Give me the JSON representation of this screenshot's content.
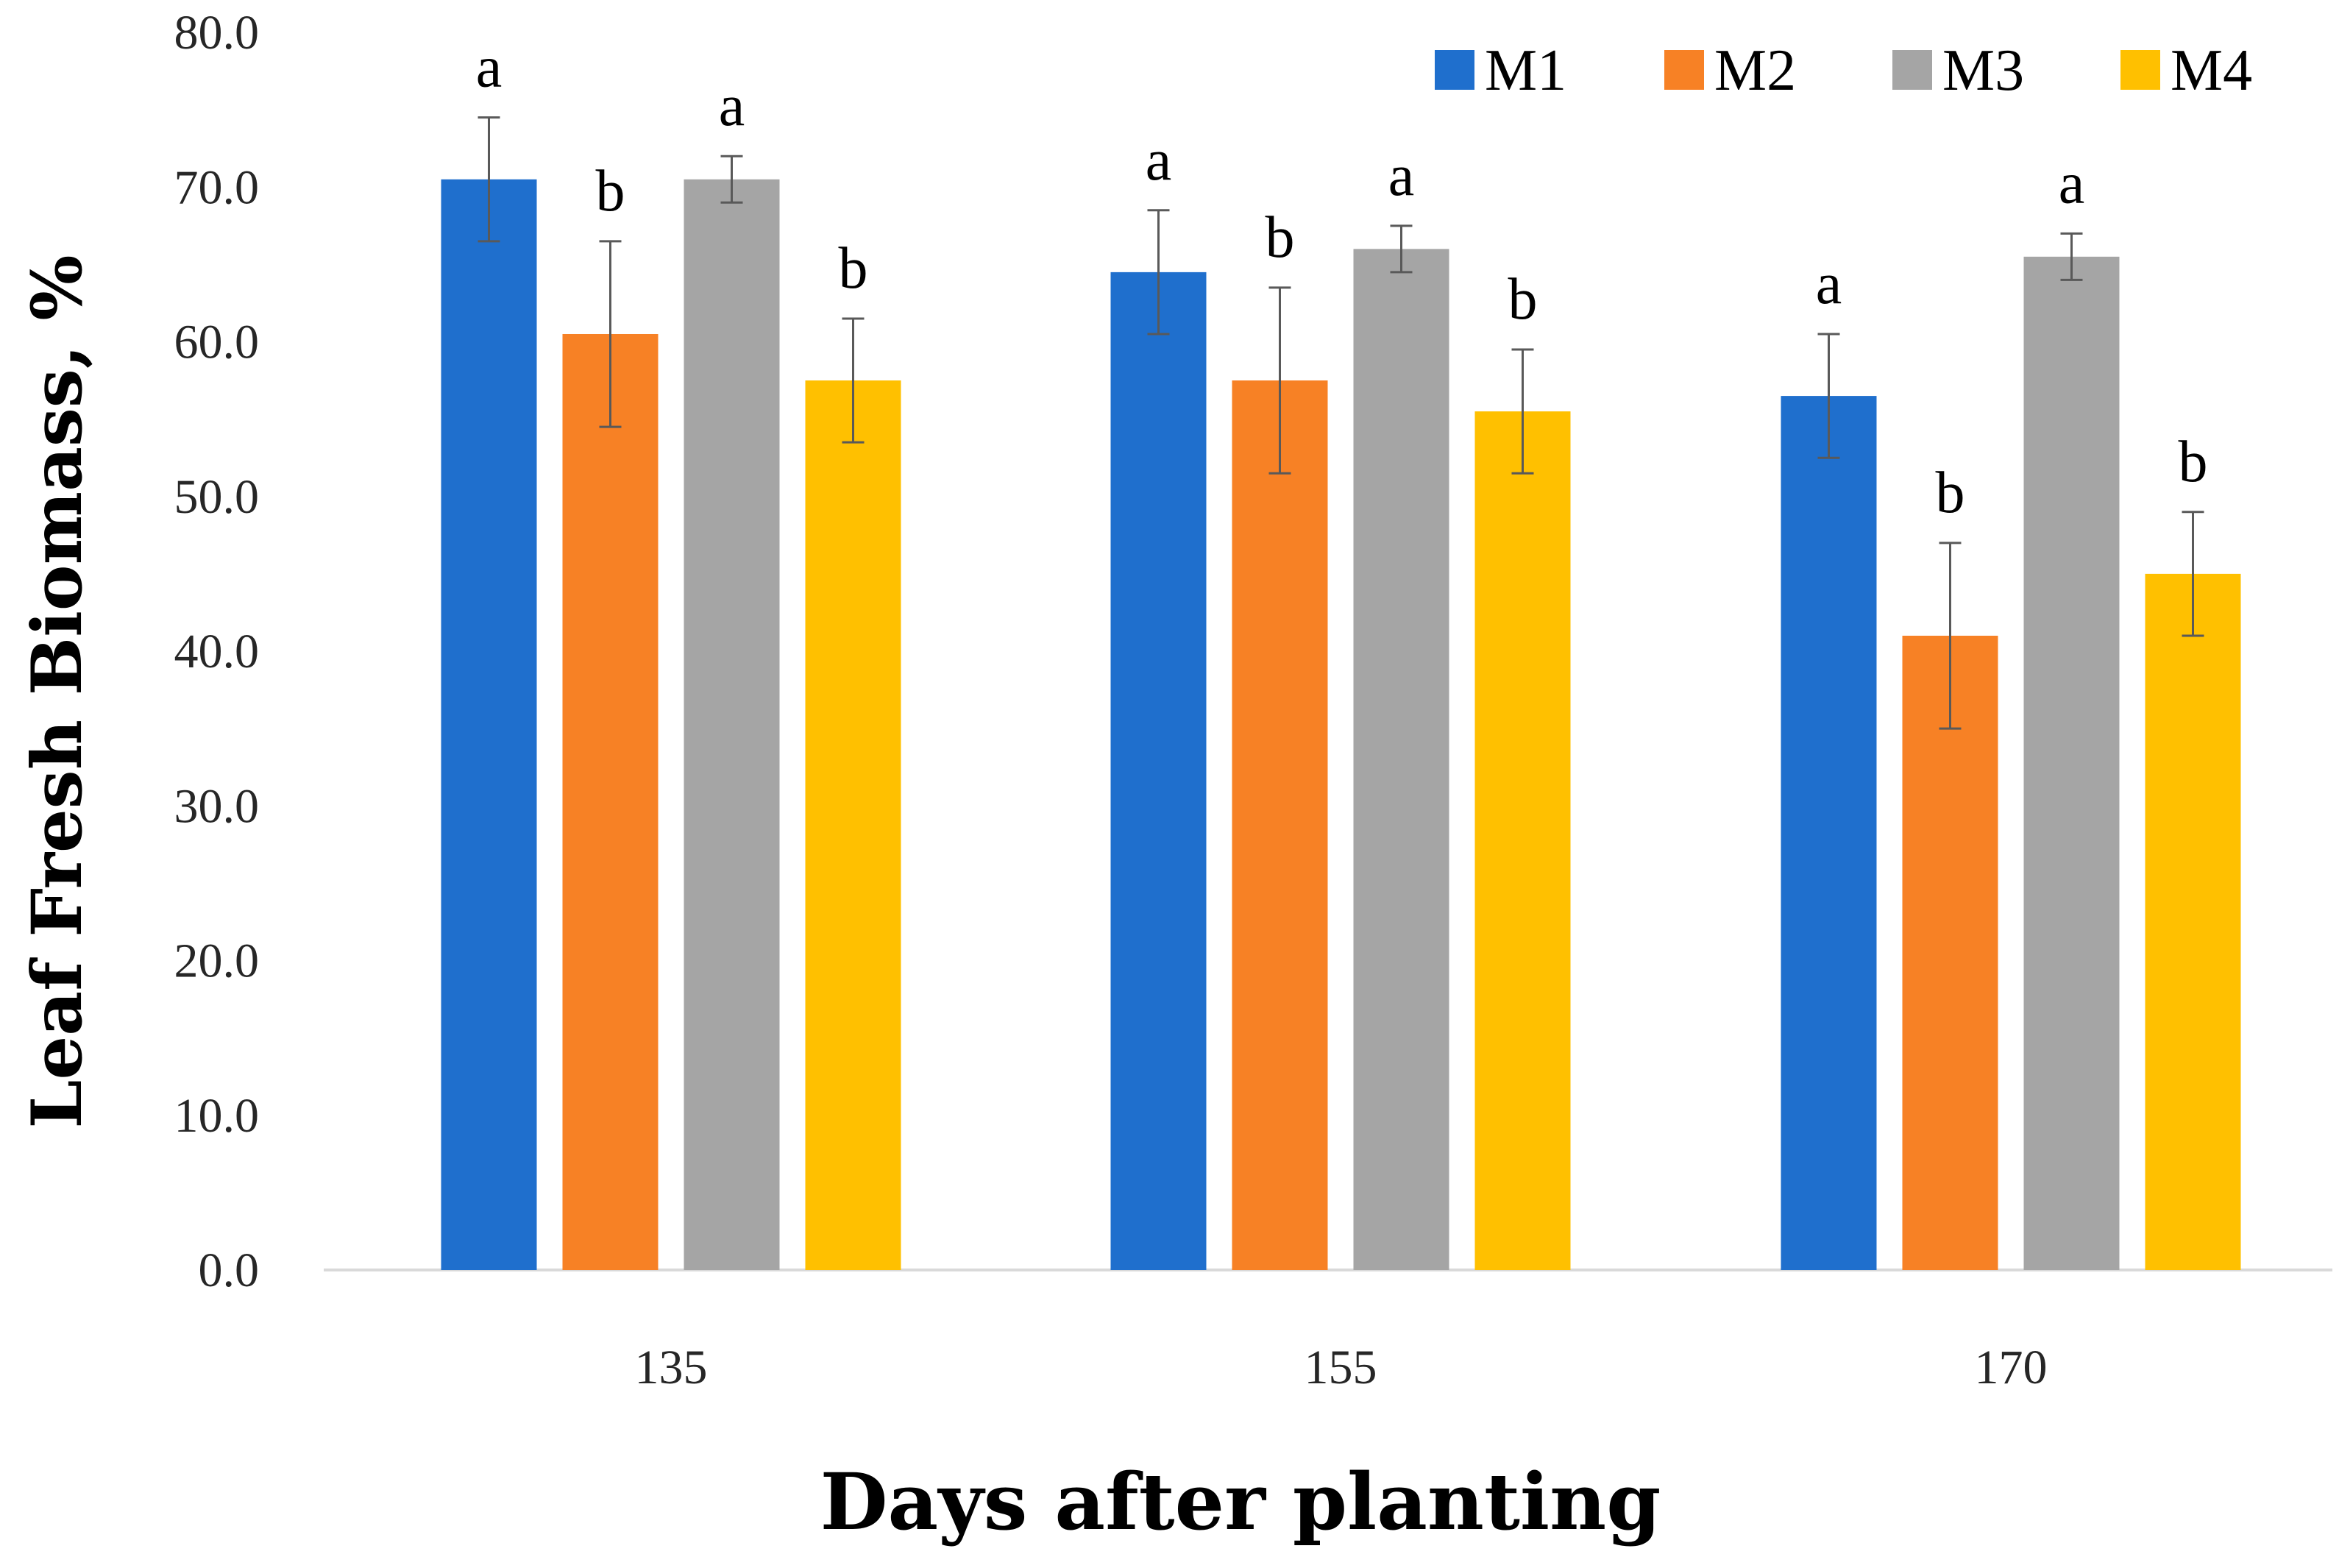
{
  "chart_data": {
    "type": "bar",
    "categories": [
      "135",
      "155",
      "170"
    ],
    "series": [
      {
        "name": "M1",
        "color": "#1F6FCD",
        "values": [
          70.5,
          64.5,
          56.5
        ],
        "errors": [
          4.0,
          4.0,
          4.0
        ],
        "letters": [
          "a",
          "a",
          "a"
        ]
      },
      {
        "name": "M2",
        "color": "#F78125",
        "values": [
          60.5,
          57.5,
          41.0
        ],
        "errors": [
          6.0,
          6.0,
          6.0
        ],
        "letters": [
          "b",
          "b",
          "b"
        ]
      },
      {
        "name": "M3",
        "color": "#A5A5A5",
        "values": [
          70.5,
          66.0,
          65.5
        ],
        "errors": [
          1.5,
          1.5,
          1.5
        ],
        "letters": [
          "a",
          "a",
          "a"
        ]
      },
      {
        "name": "M4",
        "color": "#FFC000",
        "values": [
          57.5,
          55.5,
          45.0
        ],
        "errors": [
          4.0,
          4.0,
          4.0
        ],
        "letters": [
          "b",
          "b",
          "b"
        ]
      }
    ],
    "y_ticks": [
      "0.0",
      "10.0",
      "20.0",
      "30.0",
      "40.0",
      "50.0",
      "60.0",
      "70.0",
      "80.0"
    ],
    "ylim": [
      0,
      80
    ],
    "xlabel": "Days after planting",
    "ylabel": "Leaf Fresh Biomass, %",
    "title": "",
    "legend_position": "top-right",
    "grid": false
  }
}
